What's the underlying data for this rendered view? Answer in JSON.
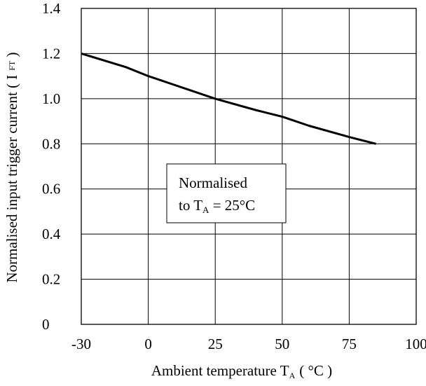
{
  "chart_data": {
    "type": "line",
    "title": "",
    "xlabel": {
      "main": "Ambient temperature T",
      "subscript": "A",
      "unit": "( °C )"
    },
    "ylabel": {
      "main": "Normalised input trigger current ( I",
      "subscript": "FT",
      "close": " )"
    },
    "xlim": [
      -30,
      100
    ],
    "ylim": [
      0,
      1.4
    ],
    "x_ticks": [
      -30,
      0,
      25,
      50,
      75,
      100
    ],
    "x_tick_labels": [
      "-30",
      "0",
      "25",
      "50",
      "75",
      "100"
    ],
    "y_ticks": [
      0,
      0.2,
      0.4,
      0.6,
      0.8,
      1.0,
      1.2,
      1.4
    ],
    "y_tick_labels": [
      "0",
      "0.2",
      "0.4",
      "0.6",
      "0.8",
      "1.0",
      "1.2",
      "1.4"
    ],
    "grid": true,
    "series": [
      {
        "x": [
          -30,
          -10,
          0,
          10,
          25,
          40,
          50,
          60,
          75,
          85
        ],
        "y": [
          1.2,
          1.14,
          1.1,
          1.06,
          1.0,
          0.95,
          0.92,
          0.88,
          0.83,
          0.8
        ]
      }
    ],
    "annotation": {
      "line1": "Normalised",
      "line2_prefix": "to T",
      "line2_subscript": "A",
      "line2_suffix": " = 25°C"
    }
  }
}
